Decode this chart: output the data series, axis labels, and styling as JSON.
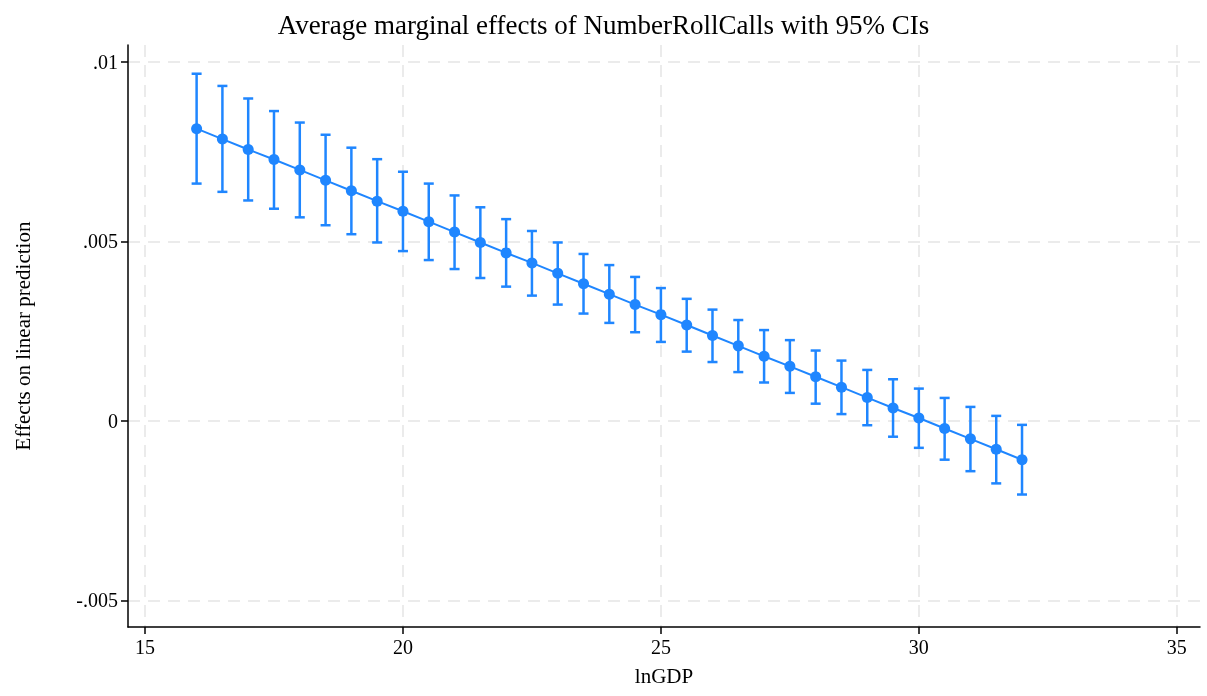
{
  "chart_data": {
    "type": "line",
    "title": "Average marginal effects of NumberRollCalls with 95% CIs",
    "xlabel": "lnGDP",
    "ylabel": "Effects on linear prediction",
    "x": [
      16,
      16.5,
      17,
      17.5,
      18,
      18.5,
      19,
      19.5,
      20,
      20.5,
      21,
      21.5,
      22,
      22.5,
      23,
      23.5,
      24,
      24.5,
      25,
      25.5,
      26,
      26.5,
      27,
      27.5,
      28,
      28.5,
      29,
      29.5,
      30,
      30.5,
      31,
      31.5,
      32
    ],
    "series": [
      {
        "color": "#1f86ff",
        "values": [
          0.00814,
          0.00785,
          0.00756,
          0.00728,
          0.00699,
          0.0067,
          0.00641,
          0.00612,
          0.00584,
          0.00555,
          0.00526,
          0.00497,
          0.00468,
          0.0044,
          0.00411,
          0.00382,
          0.00353,
          0.00324,
          0.00296,
          0.00267,
          0.00238,
          0.00209,
          0.0018,
          0.00152,
          0.00123,
          0.00094,
          0.00065,
          0.00036,
          8e-05,
          -0.00021,
          -0.0005,
          -0.00079,
          -0.00108
        ],
        "errors": [
          [
            0.00661,
            0.00967
          ],
          [
            0.00638,
            0.00933
          ],
          [
            0.00614,
            0.00898
          ],
          [
            0.00591,
            0.00863
          ],
          [
            0.00567,
            0.00831
          ],
          [
            0.00545,
            0.00797
          ],
          [
            0.0052,
            0.00761
          ],
          [
            0.00497,
            0.00729
          ],
          [
            0.00473,
            0.00694
          ],
          [
            0.00448,
            0.00661
          ],
          [
            0.00423,
            0.00628
          ],
          [
            0.00398,
            0.00595
          ],
          [
            0.00374,
            0.00562
          ],
          [
            0.00349,
            0.00529
          ],
          [
            0.00324,
            0.00497
          ],
          [
            0.00299,
            0.00465
          ],
          [
            0.00273,
            0.00434
          ],
          [
            0.00247,
            0.00401
          ],
          [
            0.0022,
            0.0037
          ],
          [
            0.00193,
            0.0034
          ],
          [
            0.00164,
            0.0031
          ],
          [
            0.00136,
            0.00281
          ],
          [
            0.00107,
            0.00253
          ],
          [
            0.00078,
            0.00225
          ],
          [
            0.00048,
            0.00196
          ],
          [
            0.00019,
            0.00168
          ],
          [
            -0.00012,
            0.00142
          ],
          [
            -0.00044,
            0.00116
          ],
          [
            -0.00075,
            0.0009
          ],
          [
            -0.00108,
            0.00064
          ],
          [
            -0.0014,
            0.00039
          ],
          [
            -0.00174,
            0.00014
          ],
          [
            -0.00205,
            -0.00011
          ]
        ]
      }
    ],
    "xlim": [
      14.67,
      35.45
    ],
    "xticks": [
      15,
      20,
      25,
      30,
      35
    ],
    "ylim": [
      -0.00574,
      0.01047
    ],
    "yticks": [
      {
        "value": -0.005,
        "label": "-.005"
      },
      {
        "value": 0,
        "label": "0"
      },
      {
        "value": 0.005,
        "label": ".005"
      },
      {
        "value": 0.01,
        "label": ".01"
      }
    ],
    "grid": true,
    "marker": "circle",
    "line_style": "solid"
  }
}
